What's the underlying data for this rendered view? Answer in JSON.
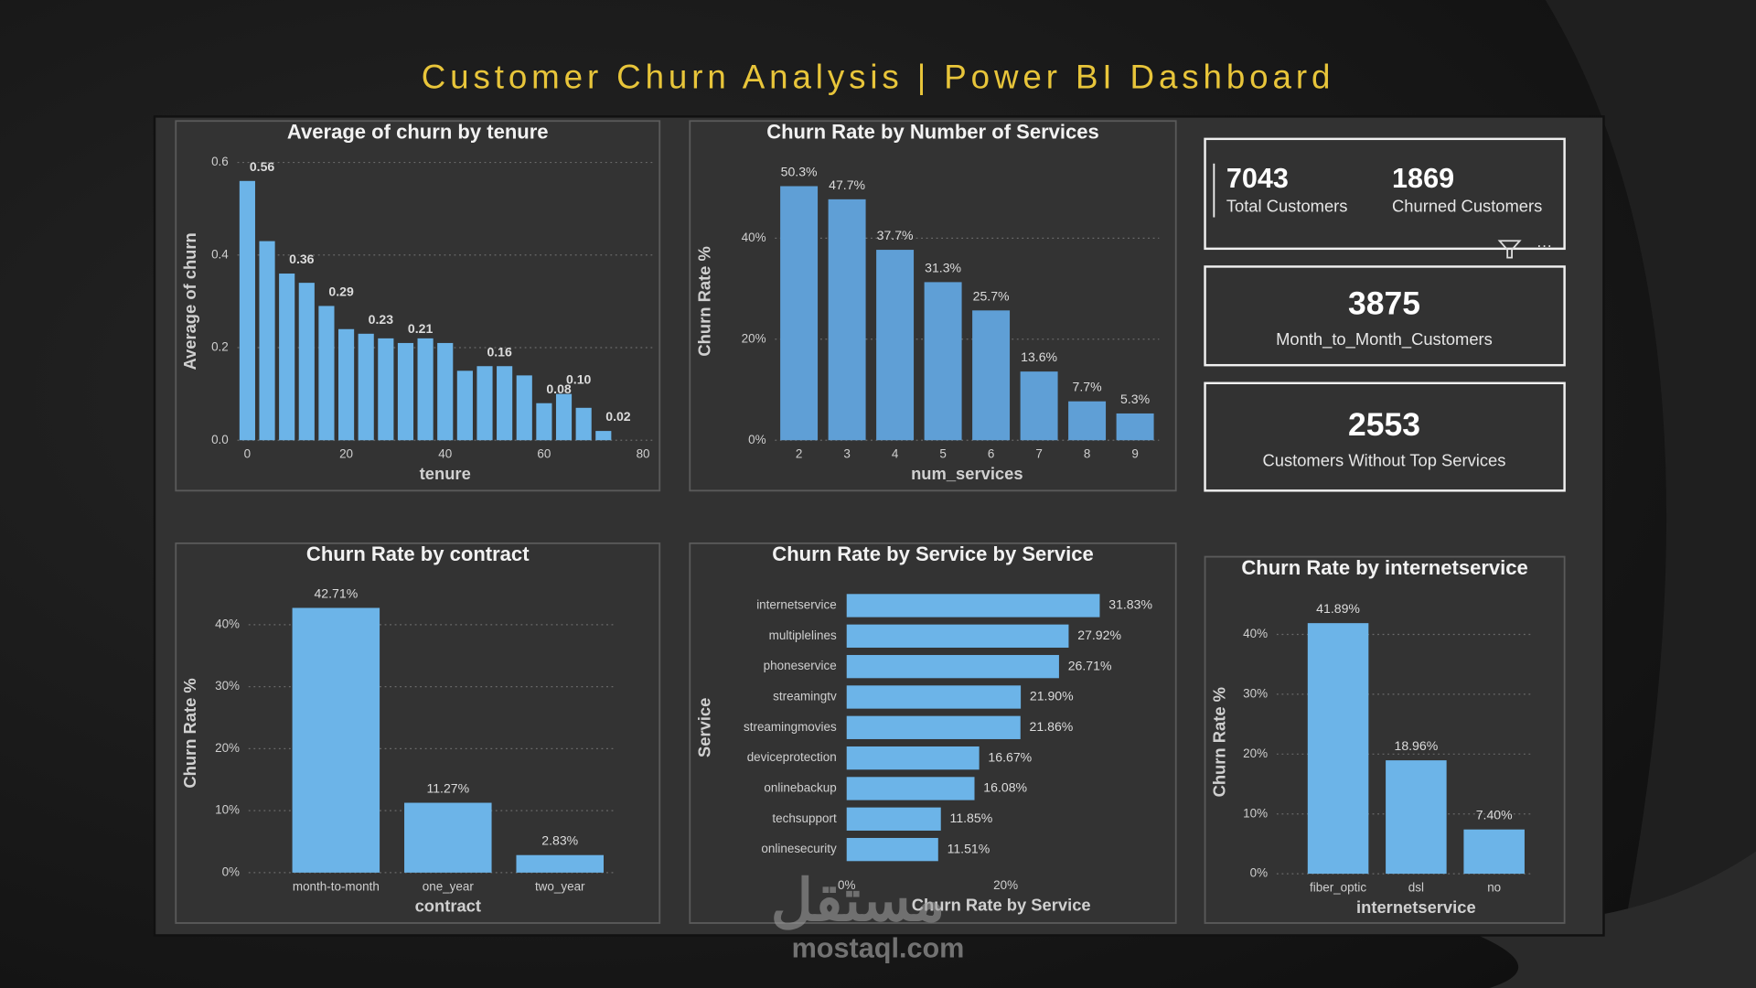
{
  "title": "Customer Churn Analysis | Power BI Dashboard",
  "kpis": [
    {
      "value": "7043",
      "label": "Total Customers"
    },
    {
      "value": "1869",
      "label": "Churned Customers"
    },
    {
      "value": "3875",
      "label": "Month_to_Month_Customers"
    },
    {
      "value": "2553",
      "label": "Customers Without Top Services"
    }
  ],
  "watermark": {
    "arabic": "مستقل",
    "site": "mostaql.com"
  },
  "chart_data": [
    {
      "type": "bar",
      "title": "Average of churn by tenure",
      "x_label": "tenure",
      "y_label": "Average of churn",
      "x": [
        0,
        4,
        8,
        12,
        16,
        20,
        24,
        28,
        32,
        36,
        40,
        44,
        48,
        52,
        56,
        60,
        64,
        68,
        72
      ],
      "values": [
        0.56,
        0.43,
        0.36,
        0.34,
        0.29,
        0.24,
        0.23,
        0.22,
        0.21,
        0.22,
        0.21,
        0.15,
        0.16,
        0.16,
        0.14,
        0.08,
        0.1,
        0.07,
        0.02
      ],
      "value_labels": [
        "0.56",
        null,
        "0.36",
        null,
        "0.29",
        null,
        "0.23",
        null,
        "0.21",
        null,
        null,
        null,
        "0.16",
        null,
        null,
        "0.08",
        "0.10",
        null,
        "0.02"
      ],
      "color": "#6cb4e8",
      "xlim": [
        -2,
        82
      ],
      "xticks": [
        0,
        20,
        40,
        60,
        80
      ],
      "ylim": [
        0,
        0.6
      ],
      "yticks": [
        {
          "value": 0,
          "label": "0.0"
        },
        0.2,
        0.4,
        0.6
      ],
      "grid": true
    },
    {
      "type": "bar",
      "title": "Churn Rate by Number of Services",
      "x_label": "num_services",
      "y_label": "Churn Rate %",
      "categories": [
        "2",
        "3",
        "4",
        "5",
        "6",
        "7",
        "8",
        "9"
      ],
      "values": [
        50.3,
        47.7,
        37.7,
        31.3,
        25.7,
        13.6,
        7.7,
        5.3
      ],
      "value_labels": [
        "50.3%",
        "47.7%",
        "37.7%",
        "31.3%",
        "25.7%",
        "13.6%",
        "7.7%",
        "5.3%"
      ],
      "color": "#5f9fd6",
      "ylim": [
        0,
        55
      ],
      "yticks": [
        {
          "value": 0,
          "label": "0%"
        },
        {
          "value": 20,
          "label": "20%"
        },
        {
          "value": 40,
          "label": "40%"
        }
      ],
      "grid": true
    },
    {
      "type": "bar",
      "title": "Churn Rate by contract",
      "x_label": "contract",
      "y_label": "Churn Rate %",
      "categories": [
        "month-to-month",
        "one_year",
        "two_year"
      ],
      "values": [
        42.71,
        11.27,
        2.83
      ],
      "value_labels": [
        "42.71%",
        "11.27%",
        "2.83%"
      ],
      "color": "#6cb4e8",
      "ylim": [
        0,
        45
      ],
      "yticks": [
        {
          "value": 0,
          "label": "0%"
        },
        {
          "value": 10,
          "label": "10%"
        },
        {
          "value": 20,
          "label": "20%"
        },
        {
          "value": 30,
          "label": "30%"
        },
        {
          "value": 40,
          "label": "40%"
        }
      ],
      "grid": true
    },
    {
      "type": "hbar",
      "title": "Churn Rate by Service by Service",
      "x_label": "Churn Rate by Service",
      "y_label": "Service",
      "categories": [
        "internetservice",
        "multiplelines",
        "phoneservice",
        "streamingtv",
        "streamingmovies",
        "deviceprotection",
        "onlinebackup",
        "techsupport",
        "onlinesecurity"
      ],
      "values": [
        31.83,
        27.92,
        26.71,
        21.9,
        21.86,
        16.67,
        16.08,
        11.85,
        11.51
      ],
      "value_labels": [
        "31.83%",
        "27.92%",
        "26.71%",
        "21.90%",
        "21.86%",
        "16.67%",
        "16.08%",
        "11.85%",
        "11.51%"
      ],
      "color": "#6cb4e8",
      "xlim": [
        0,
        40
      ],
      "xticks": [
        {
          "value": 0,
          "label": "0%"
        },
        {
          "value": 20,
          "label": "20%"
        }
      ],
      "grid": false
    },
    {
      "type": "bar",
      "title": "Churn Rate by internetservice",
      "x_label": "internetservice",
      "y_label": "Churn Rate %",
      "categories": [
        "fiber_optic",
        "dsl",
        "no"
      ],
      "values": [
        41.89,
        18.96,
        7.4
      ],
      "value_labels": [
        "41.89%",
        "18.96%",
        "7.40%"
      ],
      "color": "#6cb4e8",
      "ylim": [
        0,
        44
      ],
      "yticks": [
        {
          "value": 0,
          "label": "0%"
        },
        {
          "value": 10,
          "label": "10%"
        },
        {
          "value": 20,
          "label": "20%"
        },
        {
          "value": 30,
          "label": "30%"
        },
        {
          "value": 40,
          "label": "40%"
        }
      ],
      "grid": true
    }
  ]
}
